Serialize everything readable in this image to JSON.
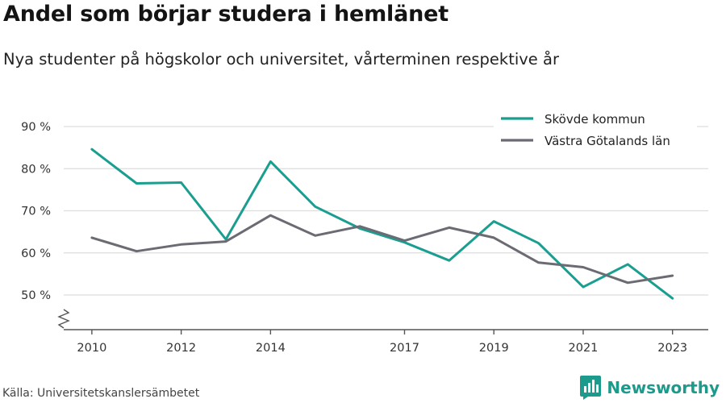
{
  "header": {
    "title": "Andel som börjar studera i hemlänet",
    "subtitle": "Nya studenter på högskolor och universitet, vårterminen respektive år"
  },
  "footer": {
    "source": "Källa: Universitetskanslersämbetet",
    "brand": "Newsworthy"
  },
  "colors": {
    "skovde": "#1a9e90",
    "vastra_gotaland": "#6b6b73",
    "grid": "#dddddd",
    "axis": "#555555",
    "brand": "#1c9a8c"
  },
  "chart_data": {
    "type": "line",
    "title": "Andel som börjar studera i hemlänet",
    "subtitle": "Nya studenter på högskolor och universitet, vårterminen respektive år",
    "xlabel": "",
    "ylabel": "",
    "x": [
      2010,
      2011,
      2012,
      2013,
      2014,
      2015,
      2016,
      2017,
      2018,
      2019,
      2020,
      2021,
      2022,
      2023
    ],
    "x_ticks": [
      2010,
      2012,
      2014,
      2017,
      2019,
      2021,
      2023
    ],
    "y_ticks": [
      50,
      60,
      70,
      80,
      90
    ],
    "y_tick_labels": [
      "50 %",
      "60 %",
      "70 %",
      "80 %",
      "90 %"
    ],
    "ylim": [
      42,
      92
    ],
    "y_axis_broken": true,
    "grid": true,
    "legend_position": "top-right",
    "series": [
      {
        "name": "Skövde kommun",
        "color": "#1a9e90",
        "values": [
          84.6,
          76.5,
          76.7,
          63.2,
          81.7,
          71.0,
          65.8,
          62.5,
          58.2,
          67.5,
          62.3,
          51.9,
          57.3,
          49.2
        ]
      },
      {
        "name": "Västra Götalands län",
        "color": "#6b6b73",
        "values": [
          63.6,
          60.4,
          62.0,
          62.7,
          68.9,
          64.1,
          66.3,
          62.9,
          66.0,
          63.6,
          57.7,
          56.6,
          52.9,
          54.6
        ]
      }
    ]
  }
}
